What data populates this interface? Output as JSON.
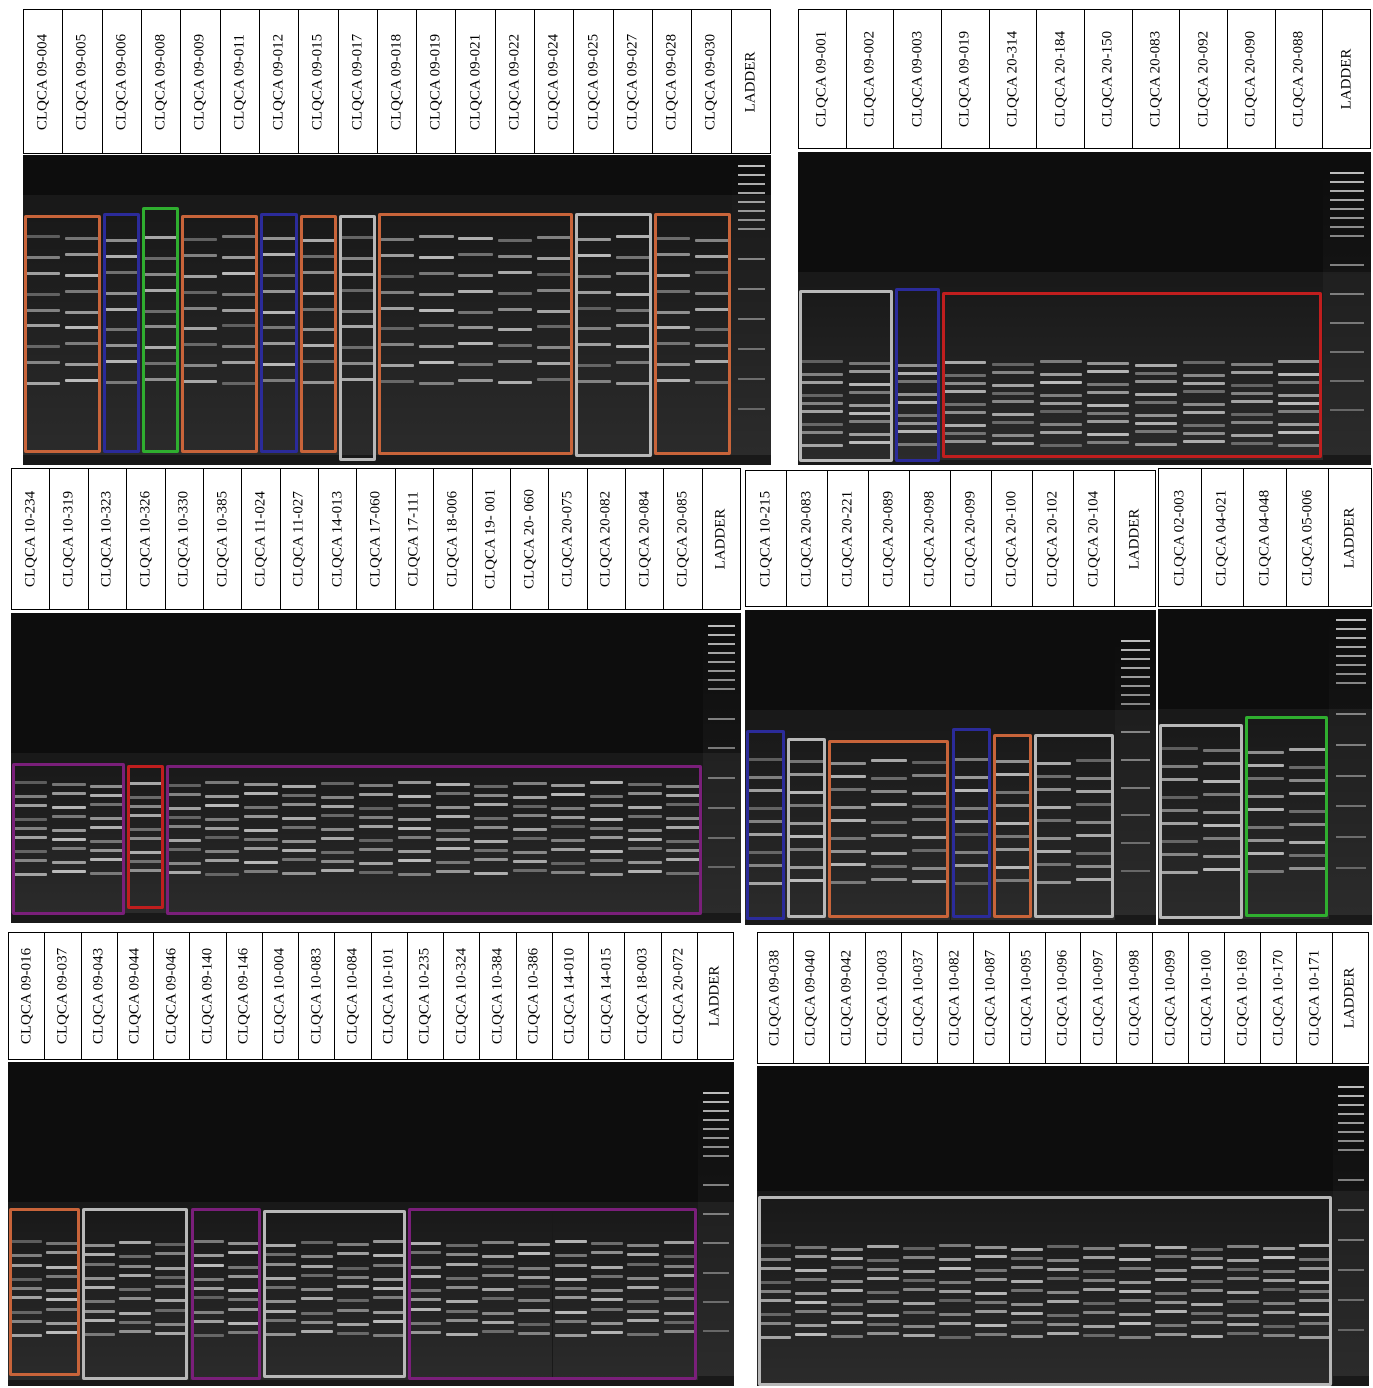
{
  "box_colors": {
    "orange": "#c8643a",
    "blue": "#2b2b9a",
    "green": "#2fae2f",
    "grey": "#b8b8b8",
    "red": "#c01e1e",
    "purple": "#7a1f7a"
  },
  "panels": [
    {
      "id": "panel-a",
      "labels": [
        "CLQCA 09-004",
        "CLQCA 09-005",
        "CLQCA 09-006",
        "CLQCA 09-008",
        "CLQCA 09-009",
        "CLQCA 09-011",
        "CLQCA 09-012",
        "CLQCA 09-015",
        "CLQCA 09-017",
        "CLQCA 09-018",
        "CLQCA 09-019",
        "CLQCA 09-021",
        "CLQCA 09-022",
        "CLQCA 09-024",
        "CLQCA 09-025",
        "CLQCA 09-027",
        "CLQCA 09-028",
        "CLQCA 09-030",
        "LADDER"
      ]
    },
    {
      "id": "panel-b",
      "labels": [
        "CLQCA 09-001",
        "CLQCA 09-002",
        "CLQCA 09-003",
        "CLQCA 09-019",
        "CLQCA 20-314",
        "CLQCA 20-184",
        "CLQCA 20-150",
        "CLQCA 20-083",
        "CLQCA 20-092",
        "CLQCA 20-090",
        "CLQCA 20-088",
        "LADDER"
      ]
    },
    {
      "id": "panel-c",
      "labels": [
        "CLQCA 10-234",
        "CLQCA 10-319",
        "CLQCA 10-323",
        "CLQCA 10-326",
        "CLQCA 10-330",
        "CLQCA 10-385",
        "CLQCA 11-024",
        "CLQCA 11-027",
        "CLQCA 14-013",
        "CLQCA 17-060",
        "CLQCA 17-111",
        "CLQCA 18-006",
        "CLQCA 19- 001",
        "CLQCA 20- 060",
        "CLQCA 20-075",
        "CLQCA 20-082",
        "CLQCA 20-084",
        "CLQCA 20-085",
        "LADDER"
      ]
    },
    {
      "id": "panel-d",
      "labels": [
        "CLQCA 10-215",
        "CLQCA 20-083",
        "CLQCA 20-221",
        "CLQCA 20-089",
        "CLQCA 20-098",
        "CLQCA 20-099",
        "CLQCA 20-100",
        "CLQCA 20-102",
        "CLQCA 20-104",
        "LADDER"
      ]
    },
    {
      "id": "panel-e",
      "labels": [
        "CLQCA 02-003",
        "CLQCA 04-021",
        "CLQCA 04-048",
        "CLQCA 05-006",
        "LADDER"
      ]
    },
    {
      "id": "panel-f",
      "labels": [
        "CLQCA 09-016",
        "CLQCA 09-037",
        "CLQCA 09-043",
        "CLQCA 09-044",
        "CLQCA 09-046",
        "CLQCA 09-140",
        "CLQCA 09-146",
        "CLQCA 10-004",
        "CLQCA 10-083",
        "CLQCA 10-084",
        "CLQCA 10-101",
        "CLQCA 10-235",
        "CLQCA 10-324",
        "CLQCA 10-384",
        "CLQCA 10-386",
        "CLQCA 14-010",
        "CLQCA 14-015",
        "CLQCA 18-003",
        "CLQCA 20-072",
        "LADDER"
      ]
    },
    {
      "id": "panel-g",
      "labels": [
        "CLQCA 09-038",
        "CLQCA 09-040",
        "CLQCA 09-042",
        "CLQCA 10-003",
        "CLQCA 10-037",
        "CLQCA 10-082",
        "CLQCA 10-087",
        "CLQCA 10-095",
        "CLQCA 10-096",
        "CLQCA 10-097",
        "CLQCA 10-098",
        "CLQCA 10-099",
        "CLQCA 10-100",
        "CLQCA 10-169",
        "CLQCA 10-170",
        "CLQCA 10-171",
        "LADDER"
      ]
    }
  ]
}
